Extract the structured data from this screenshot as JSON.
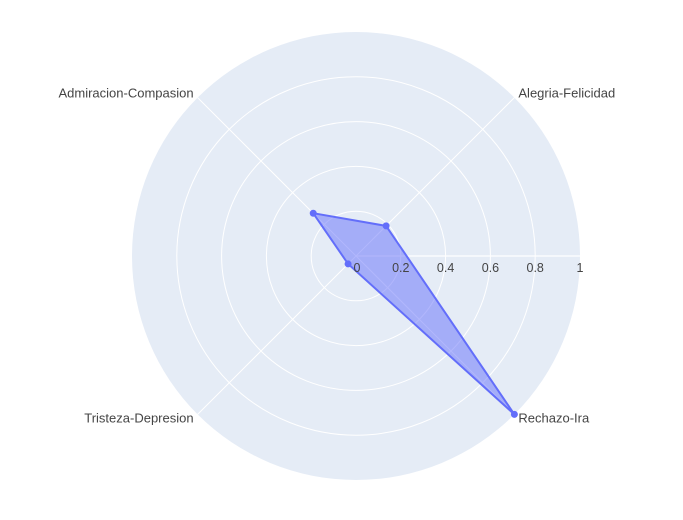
{
  "chart_data": {
    "type": "radar",
    "categories": [
      "Alegria-Felicidad",
      "Rechazo-Ira",
      "Tristeza-Depresion",
      "Admiracion-Compasion"
    ],
    "angles_deg": [
      45,
      315,
      225,
      135
    ],
    "series": [
      {
        "values": [
          0.19,
          1.0,
          0.05,
          0.27
        ],
        "color": "#636efa"
      }
    ],
    "radial_range": [
      0,
      1
    ],
    "radial_ticks": [
      "0",
      "0.2",
      "0.4",
      "0.6",
      "0.8",
      "1"
    ],
    "background_color": "#e5ecf6",
    "grid": true,
    "legend": false
  }
}
